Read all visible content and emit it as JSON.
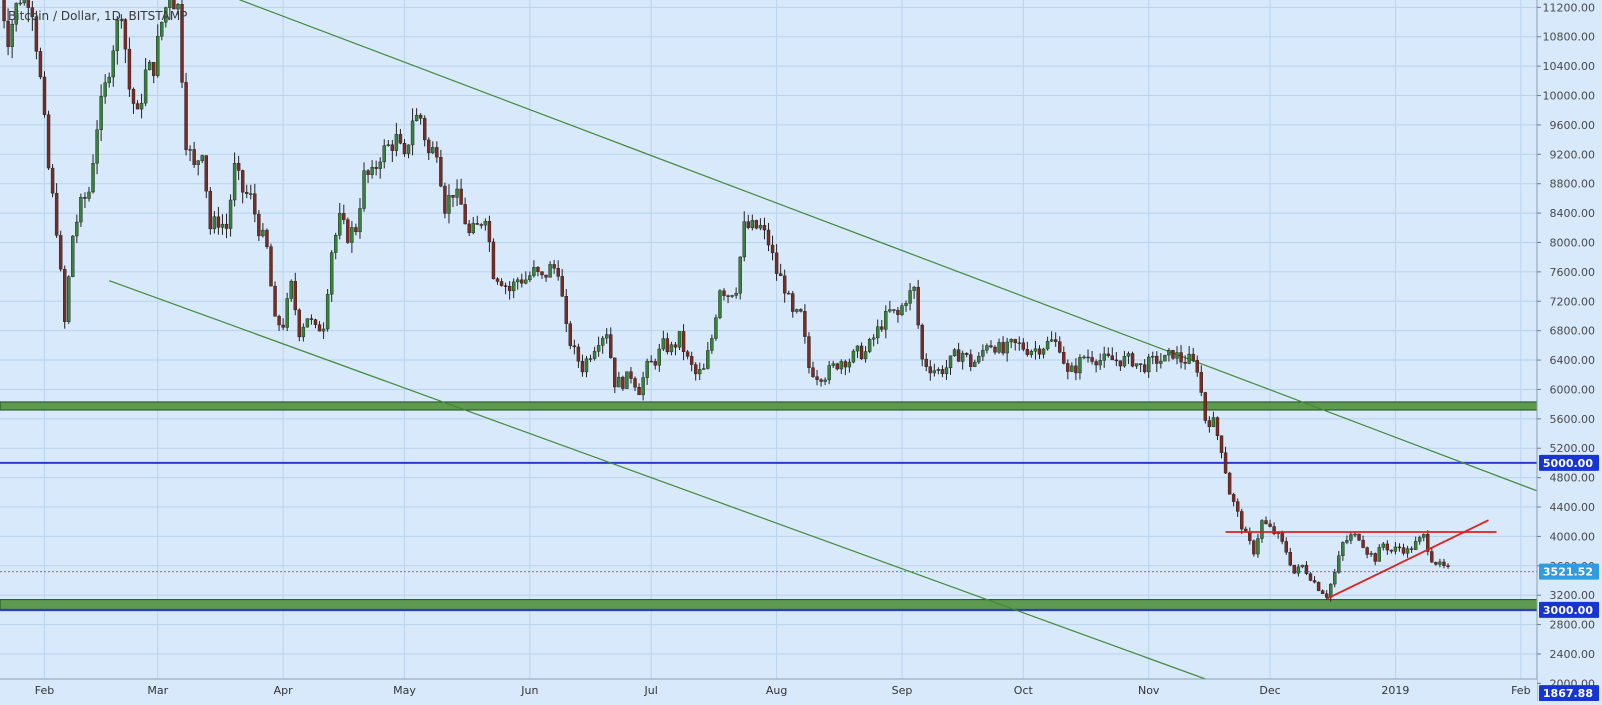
{
  "symbol": "Bitcoin / Dollar, 1D, BITSTAMP",
  "colors": {
    "background": "#d8e9fb",
    "grid": "#b9d3ef",
    "up_candle": "#38813a",
    "down_candle": "#7a2c22",
    "wick": "#222222",
    "channel_line": "#3f8a38",
    "support_zone": "#5e9950",
    "support_zone_border": "#1f4f1c",
    "horizontal_level": "#2a3bd6",
    "pattern_line": "#e0201a",
    "current_price_label": "#2f9be0",
    "level_label": "#1734d4"
  },
  "chart_data": {
    "type": "candlestick",
    "title": "Bitcoin / Dollar, 1D, BITSTAMP",
    "y_axis": {
      "range": [
        1760,
        11300
      ],
      "ticks": [
        "11200.00",
        "10800.00",
        "10400.00",
        "10000.00",
        "9600.00",
        "9200.00",
        "8800.00",
        "8400.00",
        "8000.00",
        "7600.00",
        "7200.00",
        "6800.00",
        "6400.00",
        "6000.00",
        "5600.00",
        "5200.00",
        "4800.00",
        "4400.00",
        "4000.00",
        "3600.00",
        "3200.00",
        "2800.00",
        "2400.00",
        "2000.00"
      ],
      "tick_values": [
        11200,
        10800,
        10400,
        10000,
        9600,
        9200,
        8800,
        8400,
        8000,
        7600,
        7200,
        6800,
        6400,
        6000,
        5600,
        5200,
        4800,
        4400,
        4000,
        3600,
        3200,
        2800,
        2400,
        2000
      ],
      "side": "right"
    },
    "x_axis": {
      "ticks": [
        {
          "label": "Feb",
          "date": "2018-02-01"
        },
        {
          "label": "Mar",
          "date": "2018-03-01"
        },
        {
          "label": "Apr",
          "date": "2018-04-01"
        },
        {
          "label": "May",
          "date": "2018-05-01"
        },
        {
          "label": "Jun",
          "date": "2018-06-01"
        },
        {
          "label": "Jul",
          "date": "2018-07-01"
        },
        {
          "label": "Aug",
          "date": "2018-08-01"
        },
        {
          "label": "Sep",
          "date": "2018-09-01"
        },
        {
          "label": "Oct",
          "date": "2018-10-01"
        },
        {
          "label": "Nov",
          "date": "2018-11-01"
        },
        {
          "label": "Dec",
          "date": "2018-12-01"
        },
        {
          "label": "2019",
          "date": "2019-01-01"
        },
        {
          "label": "Feb",
          "date": "2019-02-01"
        }
      ],
      "range": [
        "2018-01-21",
        "2019-02-05"
      ]
    },
    "series_anchors": [
      [
        "2018-01-21",
        11400
      ],
      [
        "2018-01-23",
        10800
      ],
      [
        "2018-01-25",
        11200
      ],
      [
        "2018-01-27",
        11500
      ],
      [
        "2018-01-29",
        11200
      ],
      [
        "2018-01-31",
        10200
      ],
      [
        "2018-02-02",
        9000
      ],
      [
        "2018-02-04",
        8200
      ],
      [
        "2018-02-06",
        6900
      ],
      [
        "2018-02-08",
        8100
      ],
      [
        "2018-02-10",
        8500
      ],
      [
        "2018-02-12",
        8700
      ],
      [
        "2018-02-14",
        9600
      ],
      [
        "2018-02-16",
        10100
      ],
      [
        "2018-02-18",
        10700
      ],
      [
        "2018-02-20",
        11200
      ],
      [
        "2018-02-22",
        10100
      ],
      [
        "2018-02-24",
        9700
      ],
      [
        "2018-02-26",
        10300
      ],
      [
        "2018-02-28",
        10400
      ],
      [
        "2018-03-02",
        11000
      ],
      [
        "2018-03-04",
        11400
      ],
      [
        "2018-03-06",
        11200
      ],
      [
        "2018-03-08",
        9400
      ],
      [
        "2018-03-10",
        9000
      ],
      [
        "2018-03-12",
        9300
      ],
      [
        "2018-03-14",
        8200
      ],
      [
        "2018-03-16",
        8300
      ],
      [
        "2018-03-18",
        8200
      ],
      [
        "2018-03-20",
        9000
      ],
      [
        "2018-03-22",
        8700
      ],
      [
        "2018-03-24",
        8600
      ],
      [
        "2018-03-26",
        8200
      ],
      [
        "2018-03-28",
        7900
      ],
      [
        "2018-03-30",
        6900
      ],
      [
        "2018-04-01",
        6900
      ],
      [
        "2018-04-03",
        7400
      ],
      [
        "2018-04-05",
        6800
      ],
      [
        "2018-04-07",
        7000
      ],
      [
        "2018-04-09",
        6800
      ],
      [
        "2018-04-11",
        6900
      ],
      [
        "2018-04-13",
        7900
      ],
      [
        "2018-04-15",
        8300
      ],
      [
        "2018-04-17",
        8100
      ],
      [
        "2018-04-19",
        8200
      ],
      [
        "2018-04-21",
        8900
      ],
      [
        "2018-04-23",
        8900
      ],
      [
        "2018-04-25",
        9200
      ],
      [
        "2018-04-27",
        9300
      ],
      [
        "2018-04-29",
        9400
      ],
      [
        "2018-05-01",
        9100
      ],
      [
        "2018-05-03",
        9700
      ],
      [
        "2018-05-05",
        9700
      ],
      [
        "2018-05-07",
        9200
      ],
      [
        "2018-05-09",
        9300
      ],
      [
        "2018-05-11",
        8500
      ],
      [
        "2018-05-13",
        8700
      ],
      [
        "2018-05-15",
        8500
      ],
      [
        "2018-05-17",
        8100
      ],
      [
        "2018-05-19",
        8200
      ],
      [
        "2018-05-21",
        8400
      ],
      [
        "2018-05-23",
        7600
      ],
      [
        "2018-05-25",
        7500
      ],
      [
        "2018-05-27",
        7350
      ],
      [
        "2018-05-29",
        7500
      ],
      [
        "2018-05-31",
        7500
      ],
      [
        "2018-06-02",
        7600
      ],
      [
        "2018-06-04",
        7500
      ],
      [
        "2018-06-06",
        7650
      ],
      [
        "2018-06-08",
        7650
      ],
      [
        "2018-06-10",
        6800
      ],
      [
        "2018-06-12",
        6500
      ],
      [
        "2018-06-14",
        6300
      ],
      [
        "2018-06-16",
        6500
      ],
      [
        "2018-06-18",
        6700
      ],
      [
        "2018-06-20",
        6800
      ],
      [
        "2018-06-22",
        6100
      ],
      [
        "2018-06-24",
        6100
      ],
      [
        "2018-06-26",
        6200
      ],
      [
        "2018-06-28",
        6000
      ],
      [
        "2018-06-30",
        6300
      ],
      [
        "2018-07-02",
        6400
      ],
      [
        "2018-07-04",
        6600
      ],
      [
        "2018-07-06",
        6550
      ],
      [
        "2018-07-08",
        6700
      ],
      [
        "2018-07-10",
        6400
      ],
      [
        "2018-07-12",
        6200
      ],
      [
        "2018-07-14",
        6250
      ],
      [
        "2018-07-16",
        6700
      ],
      [
        "2018-07-18",
        7400
      ],
      [
        "2018-07-20",
        7300
      ],
      [
        "2018-07-22",
        7400
      ],
      [
        "2018-07-24",
        8200
      ],
      [
        "2018-07-26",
        8200
      ],
      [
        "2018-07-28",
        8200
      ],
      [
        "2018-07-30",
        8000
      ],
      [
        "2018-08-01",
        7600
      ],
      [
        "2018-08-03",
        7400
      ],
      [
        "2018-08-05",
        7000
      ],
      [
        "2018-08-07",
        7000
      ],
      [
        "2018-08-09",
        6300
      ],
      [
        "2018-08-11",
        6200
      ],
      [
        "2018-08-13",
        6200
      ],
      [
        "2018-08-15",
        6300
      ],
      [
        "2018-08-17",
        6400
      ],
      [
        "2018-08-19",
        6400
      ],
      [
        "2018-08-21",
        6500
      ],
      [
        "2018-08-23",
        6500
      ],
      [
        "2018-08-25",
        6700
      ],
      [
        "2018-08-27",
        6900
      ],
      [
        "2018-08-29",
        7050
      ],
      [
        "2018-08-31",
        7000
      ],
      [
        "2018-09-02",
        7250
      ],
      [
        "2018-09-04",
        7350
      ],
      [
        "2018-09-06",
        6400
      ],
      [
        "2018-09-08",
        6300
      ],
      [
        "2018-09-10",
        6250
      ],
      [
        "2018-09-12",
        6300
      ],
      [
        "2018-09-14",
        6450
      ],
      [
        "2018-09-16",
        6500
      ],
      [
        "2018-09-18",
        6350
      ],
      [
        "2018-09-20",
        6400
      ],
      [
        "2018-09-22",
        6650
      ],
      [
        "2018-09-24",
        6600
      ],
      [
        "2018-09-26",
        6500
      ],
      [
        "2018-09-28",
        6600
      ],
      [
        "2018-09-30",
        6600
      ],
      [
        "2018-10-02",
        6550
      ],
      [
        "2018-10-04",
        6550
      ],
      [
        "2018-10-06",
        6600
      ],
      [
        "2018-10-08",
        6650
      ],
      [
        "2018-10-10",
        6600
      ],
      [
        "2018-10-12",
        6200
      ],
      [
        "2018-10-14",
        6300
      ],
      [
        "2018-10-16",
        6450
      ],
      [
        "2018-10-18",
        6450
      ],
      [
        "2018-10-20",
        6400
      ],
      [
        "2018-10-22",
        6400
      ],
      [
        "2018-10-24",
        6400
      ],
      [
        "2018-10-26",
        6400
      ],
      [
        "2018-10-28",
        6400
      ],
      [
        "2018-10-30",
        6300
      ],
      [
        "2018-11-01",
        6350
      ],
      [
        "2018-11-03",
        6400
      ],
      [
        "2018-11-05",
        6400
      ],
      [
        "2018-11-07",
        6500
      ],
      [
        "2018-11-09",
        6400
      ],
      [
        "2018-11-11",
        6400
      ],
      [
        "2018-11-13",
        6300
      ],
      [
        "2018-11-15",
        5600
      ],
      [
        "2018-11-17",
        5550
      ],
      [
        "2018-11-19",
        5200
      ],
      [
        "2018-11-21",
        4600
      ],
      [
        "2018-11-23",
        4300
      ],
      [
        "2018-11-25",
        4000
      ],
      [
        "2018-11-27",
        3800
      ],
      [
        "2018-11-29",
        4200
      ],
      [
        "2018-12-01",
        4100
      ],
      [
        "2018-12-03",
        4000
      ],
      [
        "2018-12-05",
        3800
      ],
      [
        "2018-12-07",
        3500
      ],
      [
        "2018-12-09",
        3600
      ],
      [
        "2018-12-11",
        3450
      ],
      [
        "2018-12-13",
        3300
      ],
      [
        "2018-12-15",
        3200
      ],
      [
        "2018-12-17",
        3500
      ],
      [
        "2018-12-19",
        3900
      ],
      [
        "2018-12-21",
        4000
      ],
      [
        "2018-12-23",
        4000
      ],
      [
        "2018-12-25",
        3800
      ],
      [
        "2018-12-27",
        3700
      ],
      [
        "2018-12-29",
        3900
      ],
      [
        "2018-12-31",
        3800
      ],
      [
        "2019-01-02",
        3850
      ],
      [
        "2019-01-04",
        3800
      ],
      [
        "2019-01-06",
        3900
      ],
      [
        "2019-01-08",
        4000
      ],
      [
        "2019-01-10",
        3700
      ],
      [
        "2019-01-12",
        3600
      ],
      [
        "2019-01-14",
        3550
      ]
    ],
    "last_price": 3521.52,
    "channel_lines": [
      {
        "name": "upper-channel",
        "p1": {
          "date": "2018-03-07",
          "price": 11600
        },
        "p2": {
          "date": "2019-02-05",
          "price": 4620
        }
      },
      {
        "name": "lower-channel",
        "p1": {
          "date": "2018-02-17",
          "price": 7480
        },
        "p2": {
          "date": "2018-12-01",
          "price": 1740
        }
      }
    ],
    "support_zones": [
      {
        "name": "support-zone-5800",
        "low": 5720,
        "high": 5830
      },
      {
        "name": "support-zone-3000",
        "low": 2990,
        "high": 3140
      }
    ],
    "horizontal_levels": [
      {
        "name": "level-5000",
        "price": 5000,
        "label": "5000.00"
      },
      {
        "name": "level-3000",
        "price": 3000,
        "label": "3000.00"
      },
      {
        "name": "level-1867",
        "price": 1867.88,
        "label": "1867.88"
      }
    ],
    "pattern_lines": [
      {
        "name": "resistance-line",
        "p1": {
          "date": "2018-11-20",
          "price": 4060
        },
        "p2": {
          "date": "2019-01-26",
          "price": 4060
        }
      },
      {
        "name": "rising-support-line",
        "p1": {
          "date": "2018-12-15",
          "price": 3150
        },
        "p2": {
          "date": "2019-01-24",
          "price": 4220
        }
      }
    ],
    "price_labels": [
      {
        "name": "current-price-label",
        "price": 3521.52,
        "label": "3521.52",
        "kind": "current"
      },
      {
        "name": "level-label-5000",
        "price": 5000,
        "label": "5000.00",
        "kind": "level"
      },
      {
        "name": "level-label-3000",
        "price": 3000,
        "label": "3000.00",
        "kind": "level"
      },
      {
        "name": "level-label-1867",
        "price": 1867.88,
        "label": "1867.88",
        "kind": "level"
      }
    ]
  }
}
